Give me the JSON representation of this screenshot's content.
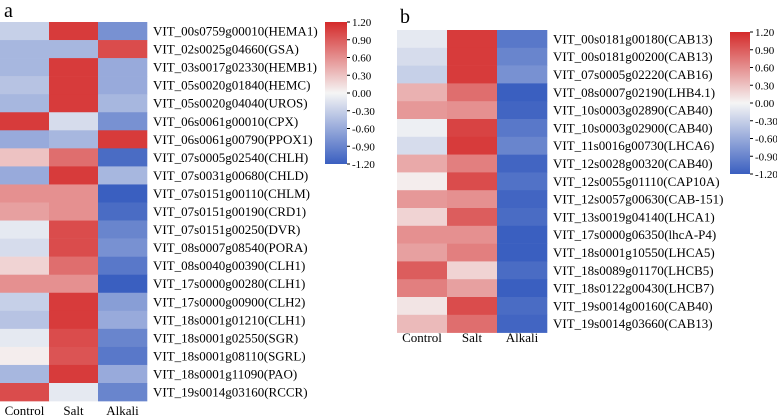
{
  "chart_data": [
    {
      "type": "heatmap",
      "panel_label": "a",
      "columns": [
        "Control",
        "Salt",
        "Alkali"
      ],
      "colorbar": {
        "min": -1.2,
        "max": 1.2,
        "ticks": [
          "1.20",
          "0.90",
          "0.60",
          "0.30",
          "0.00",
          "-0.30",
          "-0.60",
          "-0.90",
          "-1.20"
        ],
        "colors": {
          "low": "#3a5fc0",
          "mid": "#f5f5f5",
          "high": "#d42a2a"
        }
      },
      "rows": [
        {
          "label": "VIT_00s0759g00010(HEMA1)",
          "values": [
            -0.3,
            1.1,
            -0.8
          ]
        },
        {
          "label": "VIT_02s0025g04660(GSA)",
          "values": [
            -0.5,
            -0.5,
            1.0
          ]
        },
        {
          "label": "VIT_03s0017g02330(HEMB1)",
          "values": [
            -0.5,
            1.1,
            -0.6
          ]
        },
        {
          "label": "VIT_05s0020g01840(HEMC)",
          "values": [
            -0.4,
            1.1,
            -0.6
          ]
        },
        {
          "label": "VIT_05s0020g04040(UROS)",
          "values": [
            -0.5,
            1.1,
            -0.5
          ]
        },
        {
          "label": "VIT_06s0061g00010(CPX)",
          "values": [
            1.1,
            -0.2,
            -0.8
          ]
        },
        {
          "label": "VIT_06s0061g00790(PPOX1)",
          "values": [
            -0.6,
            -0.5,
            1.1
          ]
        },
        {
          "label": "VIT_07s0005g02540(CHLH)",
          "values": [
            0.3,
            0.8,
            -1.1
          ]
        },
        {
          "label": "VIT_07s0031g00680(CHLD)",
          "values": [
            -0.6,
            1.1,
            -0.5
          ]
        },
        {
          "label": "VIT_07s0151g00110(CHLM)",
          "values": [
            0.6,
            0.6,
            -1.2
          ]
        },
        {
          "label": "VIT_07s0151g00190(CRD1)",
          "values": [
            0.5,
            0.6,
            -1.1
          ]
        },
        {
          "label": "VIT_07s0151g00250(DVR)",
          "values": [
            -0.1,
            1.0,
            -0.9
          ]
        },
        {
          "label": "VIT_08s0007g08540(PORA)",
          "values": [
            -0.2,
            1.0,
            -0.8
          ]
        },
        {
          "label": "VIT_08s0040g00390(CLH1)",
          "values": [
            0.2,
            0.8,
            -1.0
          ]
        },
        {
          "label": "VIT_17s0000g00280(CLH1)",
          "values": [
            0.6,
            0.6,
            -1.2
          ]
        },
        {
          "label": "VIT_17s0000g00900(CLH2)",
          "values": [
            -0.3,
            1.1,
            -0.7
          ]
        },
        {
          "label": "VIT_18s0001g01210(CLH1)",
          "values": [
            -0.4,
            1.1,
            -0.6
          ]
        },
        {
          "label": "VIT_18s0001g02550(SGR)",
          "values": [
            -0.1,
            1.0,
            -0.9
          ]
        },
        {
          "label": "VIT_18s0001g08110(SGRL)",
          "values": [
            0.05,
            0.95,
            -1.0
          ]
        },
        {
          "label": "VIT_18s0001g11090(PAO)",
          "values": [
            -0.5,
            1.1,
            -0.6
          ]
        },
        {
          "label": "VIT_19s0014g03160(RCCR)",
          "values": [
            1.0,
            -0.1,
            -0.9
          ]
        }
      ]
    },
    {
      "type": "heatmap",
      "panel_label": "b",
      "columns": [
        "Control",
        "Salt",
        "Alkali"
      ],
      "colorbar": {
        "min": -1.2,
        "max": 1.2,
        "ticks": [
          "1.20",
          "0.90",
          "0.60",
          "0.30",
          "0.00",
          "-0.30",
          "-0.60",
          "-0.90",
          "-1.20"
        ],
        "colors": {
          "low": "#3a5fc0",
          "mid": "#f5f5f5",
          "high": "#d42a2a"
        }
      },
      "rows": [
        {
          "label": "VIT_00s0181g00180(CAB13)",
          "values": [
            -0.1,
            1.1,
            -1.0
          ]
        },
        {
          "label": "VIT_00s0181g00200(CAB13)",
          "values": [
            -0.2,
            1.1,
            -0.9
          ]
        },
        {
          "label": "VIT_07s0005g02220(CAB16)",
          "values": [
            -0.3,
            1.1,
            -0.8
          ]
        },
        {
          "label": "VIT_08s0007g02190(LHB4.1)",
          "values": [
            0.4,
            0.8,
            -1.2
          ]
        },
        {
          "label": "VIT_10s0003g02890(CAB40)",
          "values": [
            0.55,
            0.6,
            -1.15
          ]
        },
        {
          "label": "VIT_10s0003g02900(CAB40)",
          "values": [
            -0.05,
            1.05,
            -1.0
          ]
        },
        {
          "label": "VIT_11s0016g00730(LHCA6)",
          "values": [
            -0.2,
            1.1,
            -0.9
          ]
        },
        {
          "label": "VIT_12s0028g00320(CAB40)",
          "values": [
            0.45,
            0.7,
            -1.15
          ]
        },
        {
          "label": "VIT_12s0055g01110(CAP10A)",
          "values": [
            0.05,
            1.0,
            -1.05
          ]
        },
        {
          "label": "VIT_12s0057g00630(CAB-151)",
          "values": [
            0.55,
            0.6,
            -1.15
          ]
        },
        {
          "label": "VIT_13s0019g04140(LHCA1)",
          "values": [
            0.2,
            0.9,
            -1.1
          ]
        },
        {
          "label": "VIT_17s0000g06350(lhcA-P4)",
          "values": [
            0.6,
            0.6,
            -1.2
          ]
        },
        {
          "label": "VIT_18s0001g10550(LHCA5)",
          "values": [
            0.5,
            0.7,
            -1.2
          ]
        },
        {
          "label": "VIT_18s0089g01170(LHCB5)",
          "values": [
            0.9,
            0.2,
            -1.1
          ]
        },
        {
          "label": "VIT_18s0122g00430(LHCB7)",
          "values": [
            0.7,
            0.5,
            -1.2
          ]
        },
        {
          "label": "VIT_19s0014g00160(CAB40)",
          "values": [
            0.1,
            1.0,
            -1.1
          ]
        },
        {
          "label": "VIT_19s0014g03660(CAB13)",
          "values": [
            0.35,
            0.8,
            -1.15
          ]
        }
      ]
    }
  ]
}
